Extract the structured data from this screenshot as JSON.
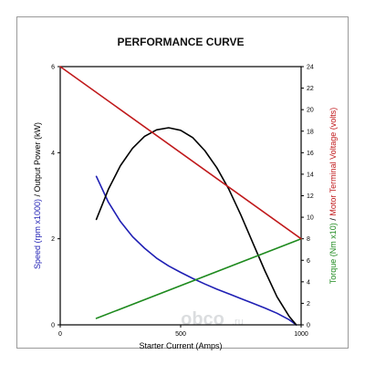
{
  "chart_data": {
    "type": "line",
    "title": "PERFORMANCE CURVE",
    "xlabel": "Starter Current (Amps)",
    "x_ticks": [
      "0",
      "500",
      "1000"
    ],
    "xlim": [
      0,
      1000
    ],
    "left_axis": {
      "label_parts": [
        {
          "text": "Speed (rpm x1000)",
          "color": "#1f1fb4"
        },
        {
          "text": " / ",
          "color": "#000000"
        },
        {
          "text": "Output Power (kW)",
          "color": "#000000"
        }
      ],
      "ylim": [
        0,
        6
      ],
      "ticks": [
        "0",
        "2",
        "4",
        "6"
      ]
    },
    "right_axis": {
      "label_parts": [
        {
          "text": "Torque (Nm x10)",
          "color": "#1e8a1e"
        },
        {
          "text": " / ",
          "color": "#000000"
        },
        {
          "text": "Motor Terminal Voltage (volts)",
          "color": "#c0191b"
        }
      ],
      "ylim": [
        0,
        24
      ],
      "ticks": [
        "0",
        "2",
        "4",
        "6",
        "8",
        "10",
        "12",
        "14",
        "16",
        "18",
        "20",
        "22",
        "24"
      ]
    },
    "series": [
      {
        "name": "Speed (rpm x1000)",
        "axis": "left",
        "color": "#1f1fb4",
        "x": [
          150,
          200,
          250,
          300,
          350,
          400,
          450,
          500,
          550,
          600,
          650,
          700,
          750,
          800,
          850,
          900,
          950,
          980
        ],
        "y": [
          3.45,
          2.85,
          2.4,
          2.05,
          1.78,
          1.55,
          1.37,
          1.22,
          1.08,
          0.95,
          0.83,
          0.72,
          0.61,
          0.5,
          0.39,
          0.27,
          0.12,
          0.0
        ]
      },
      {
        "name": "Output Power (kW)",
        "axis": "left",
        "color": "#000000",
        "x": [
          150,
          200,
          250,
          300,
          350,
          400,
          450,
          500,
          550,
          600,
          650,
          700,
          750,
          800,
          850,
          900,
          950,
          980
        ],
        "y": [
          2.45,
          3.15,
          3.7,
          4.1,
          4.38,
          4.53,
          4.58,
          4.52,
          4.35,
          4.05,
          3.65,
          3.15,
          2.55,
          1.9,
          1.25,
          0.65,
          0.2,
          0.0
        ]
      },
      {
        "name": "Torque (Nm x10)",
        "axis": "right",
        "color": "#1e8a1e",
        "x": [
          150,
          1000
        ],
        "y": [
          0.6,
          8.0
        ]
      },
      {
        "name": "Motor Terminal Voltage (volts)",
        "axis": "right",
        "color": "#c0191b",
        "x": [
          0,
          1000
        ],
        "y": [
          24.0,
          8.0
        ]
      }
    ],
    "grid": false,
    "legend": "none"
  },
  "watermark": {
    "logo_text": "obco",
    "suffix": ".ru"
  }
}
